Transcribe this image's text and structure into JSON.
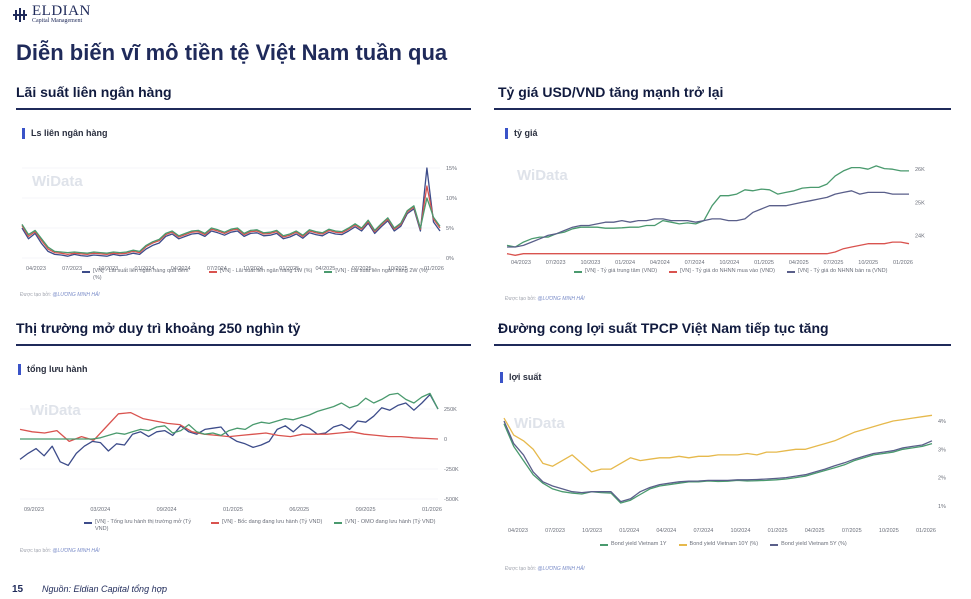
{
  "logo": {
    "name": "ELDIAN",
    "sub": "Capital Management"
  },
  "page": {
    "title": "Diễn biến vĩ mô tiền tệ Việt Nam tuần qua",
    "page_number": "15",
    "source_note": "Nguồn: Eldian Capital tổng hợp"
  },
  "sections": [
    {
      "title": "Lãi suất liên ngân hàng",
      "panel_label": "Ls liên ngân hàng",
      "watermark": "WiData",
      "credit_prefix": "Được tạo bởi:",
      "credit_author": "@LƯƠNG MINH HẢI"
    },
    {
      "title": "Tỷ giá USD/VND tăng mạnh trở lại",
      "panel_label": "tỷ giá",
      "watermark": "WiData",
      "credit_prefix": "Được tạo bởi:",
      "credit_author": "@LƯƠNG MINH HẢI"
    },
    {
      "title": "Thị trường mở duy trì khoảng 250 nghìn tỷ",
      "panel_label": "tổng lưu hành",
      "watermark": "WiData",
      "credit_prefix": "Được tạo bởi:",
      "credit_author": "@LƯƠNG MINH HẢI"
    },
    {
      "title": "Đường cong lợi suất TPCP Việt Nam tiếp tục tăng",
      "panel_label": "lợi suất",
      "watermark": "WiData",
      "credit_prefix": "Được tạo bởi:",
      "credit_author": "@LƯƠNG MINH HẢI"
    }
  ],
  "chart_data": [
    {
      "type": "line",
      "x_ticks": [
        "04/2023",
        "07/2023",
        "10/2023",
        "01/2024",
        "04/2024",
        "07/2024",
        "10/2024",
        "01/2025",
        "04/2025",
        "07/2025",
        "10/2025",
        "01/2026"
      ],
      "y_ticks": [
        "0%",
        "5%",
        "10%",
        "15%"
      ],
      "ylim": [
        0,
        16
      ],
      "colors": [
        "#3d4c8a",
        "#d9534f",
        "#4a9a6e"
      ],
      "series": [
        {
          "name": "[VN] - Lãi suất liên ngân hàng qua đêm (%)",
          "values": [
            5.0,
            3.2,
            4.1,
            2.4,
            1.1,
            0.6,
            0.5,
            0.3,
            0.6,
            0.4,
            0.3,
            0.5,
            0.4,
            0.3,
            0.6,
            0.4,
            0.5,
            0.8,
            0.6,
            1.5,
            2.1,
            2.5,
            3.6,
            4.0,
            3.2,
            3.6,
            4.0,
            4.1,
            3.6,
            4.5,
            4.2,
            3.8,
            4.3,
            4.5,
            3.6,
            4.1,
            4.2,
            3.7,
            3.8,
            4.1,
            3.2,
            3.5,
            4.0,
            3.3,
            4.2,
            3.9,
            3.7,
            4.3,
            4.0,
            3.9,
            4.5,
            5.2,
            4.5,
            5.8,
            4.1,
            5.2,
            6.2,
            4.5,
            5.3,
            7.4,
            8.2,
            4.5,
            15.0,
            6.0,
            4.5
          ]
        },
        {
          "name": "[VN] - Lãi suất liên ngân hàng 1W (%)",
          "values": [
            5.4,
            3.6,
            4.4,
            2.9,
            1.5,
            0.9,
            0.8,
            0.6,
            0.8,
            0.7,
            0.6,
            0.8,
            0.7,
            0.6,
            0.8,
            0.7,
            0.8,
            1.1,
            0.9,
            1.9,
            2.5,
            2.9,
            3.9,
            4.3,
            3.5,
            3.9,
            4.3,
            4.4,
            3.9,
            4.8,
            4.5,
            4.1,
            4.6,
            4.8,
            3.9,
            4.4,
            4.5,
            4.0,
            4.1,
            4.4,
            3.5,
            3.8,
            4.3,
            3.6,
            4.5,
            4.2,
            4.0,
            4.6,
            4.3,
            4.2,
            4.8,
            5.5,
            4.8,
            6.1,
            4.4,
            5.5,
            6.5,
            4.8,
            5.6,
            7.7,
            8.5,
            4.8,
            12.0,
            6.5,
            5.0
          ]
        },
        {
          "name": "[VN] - Lãi suất liên ngân hàng 2W (%)",
          "values": [
            5.6,
            3.9,
            4.6,
            3.2,
            1.8,
            1.1,
            1.0,
            0.9,
            1.0,
            0.9,
            0.8,
            1.0,
            0.9,
            0.8,
            1.0,
            0.9,
            1.0,
            1.3,
            1.1,
            2.1,
            2.7,
            3.1,
            4.1,
            4.5,
            3.7,
            4.1,
            4.5,
            4.6,
            4.1,
            5.0,
            4.7,
            4.3,
            4.8,
            5.0,
            4.1,
            4.6,
            4.7,
            4.2,
            4.3,
            4.6,
            3.7,
            4.0,
            4.5,
            3.8,
            4.7,
            4.4,
            4.2,
            4.8,
            4.5,
            4.4,
            5.0,
            5.7,
            5.0,
            6.3,
            4.6,
            5.7,
            6.7,
            5.0,
            5.8,
            7.9,
            8.7,
            5.0,
            10.0,
            6.8,
            5.3
          ]
        }
      ]
    },
    {
      "type": "line",
      "x_ticks": [
        "04/2023",
        "07/2023",
        "10/2023",
        "01/2024",
        "04/2024",
        "07/2024",
        "10/2024",
        "01/2025",
        "04/2025",
        "07/2025",
        "10/2025",
        "01/2026"
      ],
      "y_ticks": [
        "24K",
        "25K",
        "26K"
      ],
      "ylim": [
        23500,
        26400
      ],
      "colors": [
        "#4a9a6e",
        "#d9534f",
        "#5a5f8a"
      ],
      "series": [
        {
          "name": "[VN] - Tỷ giá trung tâm (VND)",
          "values": [
            23700,
            23650,
            23800,
            23900,
            23950,
            23950,
            24050,
            24100,
            24200,
            24250,
            24250,
            24250,
            24220,
            24220,
            24230,
            24250,
            24250,
            24300,
            24300,
            24450,
            24400,
            24350,
            24380,
            24350,
            24450,
            24900,
            25200,
            25200,
            25250,
            25380,
            25350,
            25400,
            25380,
            25250,
            25300,
            25350,
            25430,
            25450,
            25450,
            25550,
            25800,
            25950,
            26050,
            26050,
            26000,
            26100,
            26020,
            26000,
            25950,
            25950
          ]
        },
        {
          "name": "[VN] - Tỷ giá do NHNN mua vào (VND)",
          "values": [
            23450,
            23400,
            23450,
            23450,
            23450,
            23450,
            23450,
            23450,
            23450,
            23450,
            23450,
            23450,
            23450,
            23450,
            23450,
            23450,
            23450,
            23450,
            23450,
            23450,
            23450,
            23450,
            23450,
            23450,
            23450,
            23450,
            23450,
            23450,
            23450,
            23450,
            23450,
            23450,
            23450,
            23450,
            23450,
            23450,
            23450,
            23450,
            23450,
            23450,
            23500,
            23600,
            23650,
            23700,
            23750,
            23750,
            23750,
            23800,
            23800,
            23750
          ]
        },
        {
          "name": "[VN] - Tỷ giá do NHNN bán ra (VND)",
          "values": [
            23650,
            23650,
            23700,
            23800,
            23900,
            24000,
            24050,
            24150,
            24250,
            24300,
            24300,
            24350,
            24400,
            24400,
            24450,
            24400,
            24450,
            24450,
            24500,
            24500,
            24450,
            24450,
            24450,
            24400,
            24450,
            24500,
            24500,
            24450,
            24450,
            24500,
            24700,
            24800,
            24900,
            24900,
            24900,
            24950,
            25000,
            25050,
            25100,
            25150,
            25250,
            25300,
            25350,
            25250,
            25300,
            25300,
            25300,
            25250,
            25250,
            25250
          ]
        }
      ]
    },
    {
      "type": "line",
      "x_ticks": [
        "09/2023",
        "03/2024",
        "09/2024",
        "01/2025",
        "06/2025",
        "09/2025",
        "01/2026"
      ],
      "y_ticks": [
        "250K",
        "0",
        "-250K",
        "-500K"
      ],
      "ylim": [
        -500000,
        400000
      ],
      "colors": [
        "#3d4c8a",
        "#d9534f",
        "#4a9a6e"
      ],
      "series": [
        {
          "name": "[VN] - Tổng lưu hành thị trường mở (Tỷ VND)",
          "values": [
            -170000,
            -120000,
            -80000,
            -140000,
            -60000,
            -190000,
            -220000,
            -120000,
            -60000,
            -20000,
            -30000,
            -100000,
            -40000,
            -50000,
            40000,
            60000,
            20000,
            60000,
            70000,
            30000,
            110000,
            60000,
            40000,
            80000,
            90000,
            100000,
            20000,
            -20000,
            -40000,
            -70000,
            -50000,
            -20000,
            80000,
            110000,
            60000,
            120000,
            90000,
            40000,
            50000,
            100000,
            120000,
            80000,
            150000,
            140000,
            190000,
            260000,
            240000,
            280000,
            300000,
            240000,
            300000,
            370000,
            250000
          ]
        },
        {
          "name": "[VN] - Bốc dang đang lưu hành (Tỷ VND)",
          "values": [
            80000,
            60000,
            50000,
            70000,
            -20000,
            20000,
            -10000,
            100000,
            210000,
            220000,
            170000,
            150000,
            130000,
            120000,
            60000,
            40000,
            30000,
            20000,
            30000,
            40000,
            50000,
            30000,
            20000,
            40000,
            40000,
            40000,
            50000,
            60000,
            40000,
            30000,
            20000,
            20000,
            10000,
            5000,
            0
          ]
        },
        {
          "name": "[VN] - OMO đang lưu hành (Tỷ VND)",
          "values": [
            0,
            0,
            0,
            0,
            0,
            0,
            0,
            0,
            0,
            0,
            10000,
            30000,
            50000,
            40000,
            60000,
            80000,
            70000,
            100000,
            110000,
            50000,
            70000,
            120000,
            60000,
            40000,
            50000,
            30000,
            70000,
            90000,
            80000,
            120000,
            140000,
            130000,
            150000,
            170000,
            160000,
            180000,
            200000,
            230000,
            250000,
            270000,
            300000,
            260000,
            280000,
            340000,
            300000,
            330000,
            370000,
            380000,
            330000,
            300000,
            350000,
            380000,
            250000
          ]
        }
      ]
    },
    {
      "type": "line",
      "x_ticks": [
        "04/2023",
        "07/2023",
        "10/2023",
        "01/2024",
        "04/2024",
        "07/2024",
        "10/2024",
        "01/2025",
        "04/2025",
        "07/2025",
        "10/2025",
        "01/2026"
      ],
      "y_ticks": [
        "4%",
        "3%",
        "2%",
        "1%"
      ],
      "ylim": [
        0.5,
        4.6
      ],
      "colors": [
        "#4a9a6e",
        "#e6b94c",
        "#5a5f8a"
      ],
      "series": [
        {
          "name": "Bond yield Vietnam 1Y",
          "values": [
            3.9,
            3.1,
            2.6,
            2.1,
            1.8,
            1.6,
            1.5,
            1.45,
            1.42,
            1.5,
            1.47,
            1.45,
            1.1,
            1.2,
            1.4,
            1.6,
            1.7,
            1.75,
            1.8,
            1.85,
            1.85,
            1.88,
            1.86,
            1.87,
            1.9,
            1.88,
            1.89,
            1.9,
            1.92,
            1.95,
            2.0,
            2.05,
            2.15,
            2.25,
            2.35,
            2.45,
            2.6,
            2.7,
            2.8,
            2.85,
            2.9,
            3.0,
            3.05,
            3.1,
            3.2
          ]
        },
        {
          "name": "Bond yield Vietnam 10Y (%)",
          "values": [
            4.1,
            3.5,
            3.3,
            3.0,
            2.5,
            2.4,
            2.6,
            2.8,
            2.5,
            2.2,
            2.3,
            2.3,
            2.5,
            2.7,
            2.6,
            2.65,
            2.7,
            2.7,
            2.75,
            2.7,
            2.75,
            2.75,
            2.8,
            2.8,
            2.8,
            2.85,
            2.8,
            2.9,
            2.9,
            2.95,
            3.0,
            3.0,
            3.1,
            3.2,
            3.3,
            3.45,
            3.6,
            3.7,
            3.8,
            3.9,
            4.0,
            4.05,
            4.1,
            4.15,
            4.2
          ]
        },
        {
          "name": "Bond yield Vietnam 5Y (%)",
          "values": [
            4.0,
            3.2,
            2.8,
            2.2,
            1.85,
            1.7,
            1.6,
            1.5,
            1.47,
            1.5,
            1.5,
            1.5,
            1.15,
            1.25,
            1.5,
            1.65,
            1.75,
            1.8,
            1.85,
            1.87,
            1.88,
            1.9,
            1.9,
            1.9,
            1.92,
            1.92,
            1.93,
            1.95,
            1.97,
            2.0,
            2.05,
            2.1,
            2.2,
            2.3,
            2.42,
            2.52,
            2.65,
            2.75,
            2.85,
            2.9,
            2.95,
            3.05,
            3.1,
            3.15,
            3.3
          ]
        }
      ]
    }
  ]
}
